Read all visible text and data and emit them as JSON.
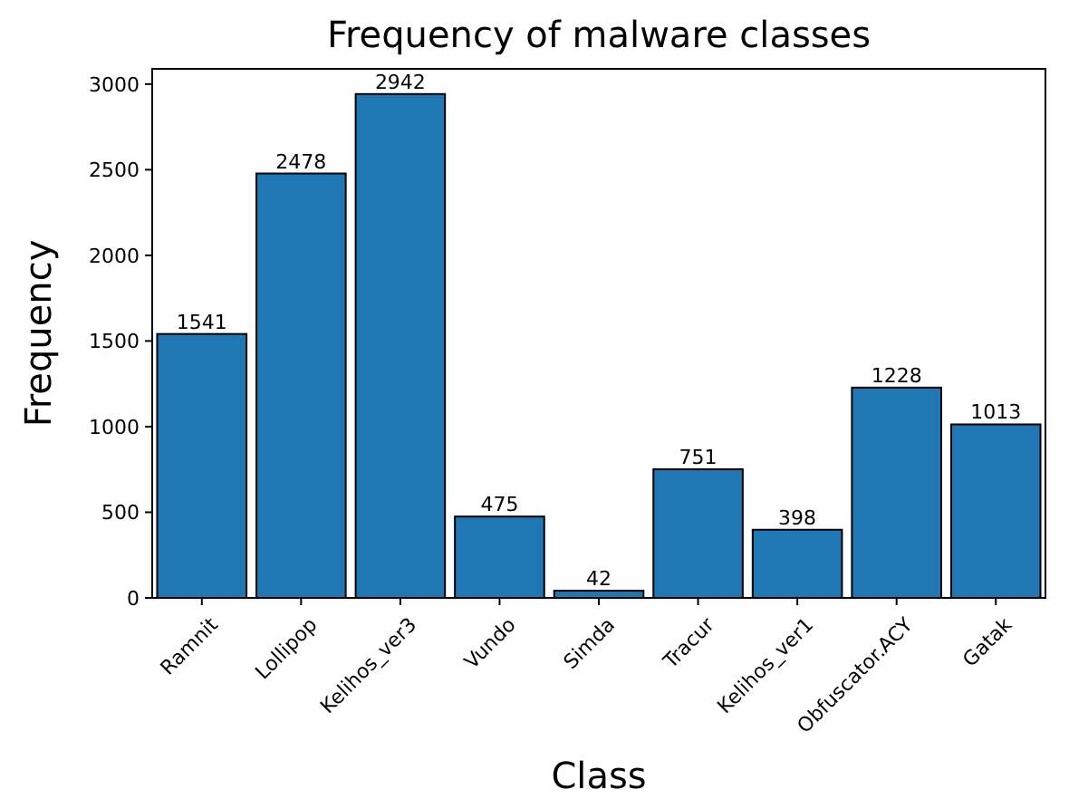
{
  "chart_data": {
    "type": "bar",
    "title": "Frequency of malware classes",
    "xlabel": "Class",
    "ylabel": "Frequency",
    "categories": [
      "Ramnit",
      "Lollipop",
      "Kelihos_ver3",
      "Vundo",
      "Simda",
      "Tracur",
      "Kelihos_ver1",
      "Obfuscator.ACY",
      "Gatak"
    ],
    "values": [
      1541,
      2478,
      2942,
      475,
      42,
      751,
      398,
      1228,
      1013
    ],
    "color": "#1f77b4",
    "ylim": [
      0,
      3089
    ],
    "yticks": [
      0,
      500,
      1000,
      1500,
      2000,
      2500,
      3000
    ],
    "grid": false,
    "data_labels": true
  }
}
